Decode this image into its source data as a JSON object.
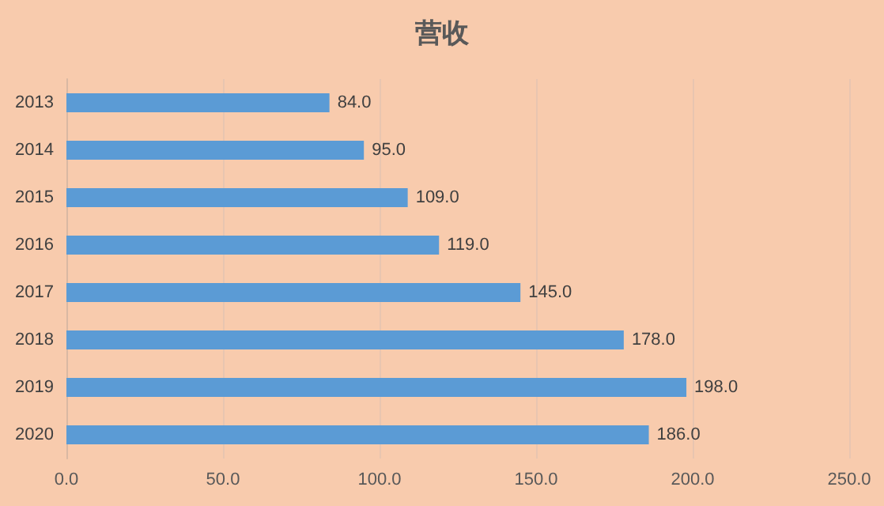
{
  "chart_data": {
    "type": "bar",
    "orientation": "horizontal",
    "title": "营收",
    "categories": [
      "2013",
      "2014",
      "2015",
      "2016",
      "2017",
      "2018",
      "2019",
      "2020"
    ],
    "values": [
      84,
      95,
      109,
      119,
      145,
      178,
      198,
      186
    ],
    "value_labels": [
      "84.0",
      "95.0",
      "109.0",
      "119.0",
      "145.0",
      "178.0",
      "198.0",
      "186.0"
    ],
    "color": "#5b9bd5",
    "xlim": [
      0,
      250
    ],
    "xticks": [
      {
        "value": 0,
        "label": "0.0"
      },
      {
        "value": 50,
        "label": "50.0"
      },
      {
        "value": 100,
        "label": "100.0"
      },
      {
        "value": 150,
        "label": "150.0"
      },
      {
        "value": 200,
        "label": "200.0"
      },
      {
        "value": 250,
        "label": "250.0"
      }
    ],
    "grid": "x"
  }
}
